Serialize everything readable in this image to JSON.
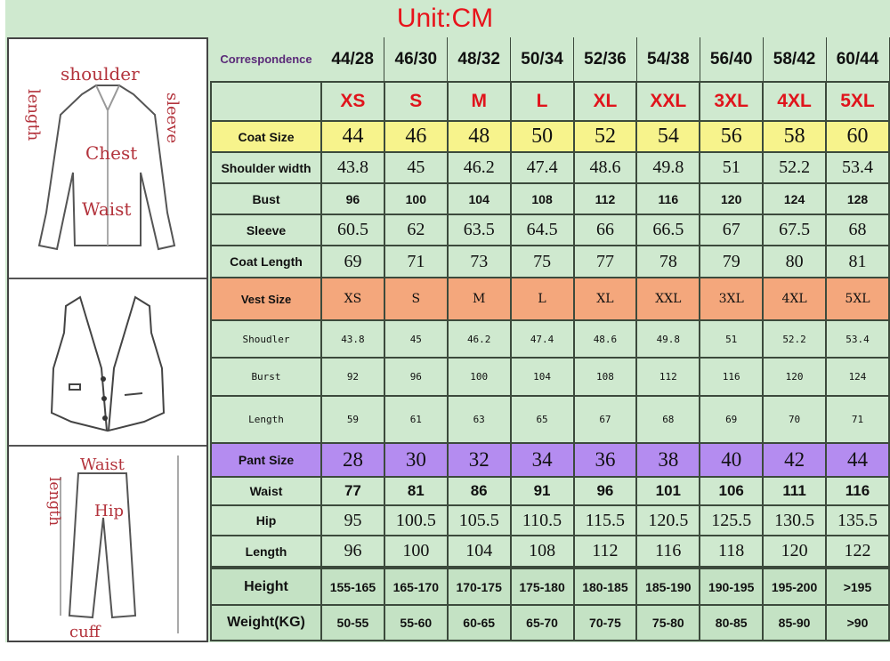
{
  "title": "Unit:CM",
  "illustrations": {
    "coat": {
      "shoulder": "shoulder",
      "length": "length",
      "sleeve": "sleeve",
      "chest": "Chest",
      "waist": "Waist"
    },
    "pants": {
      "waist": "Waist",
      "length": "length",
      "hip": "Hip",
      "cuff": "cuff"
    }
  },
  "colors": {
    "title": "#e8131b",
    "background": "#cfe9cf",
    "coat_size": "#f7f38c",
    "vest_size": "#f4a77c",
    "pant_size": "#b48cf0",
    "size_letters": "#e0141c"
  },
  "table": {
    "rows": [
      {
        "cls": "hdr",
        "h": 50,
        "label": "Correspondence",
        "values": [
          "44/28",
          "46/30",
          "48/32",
          "50/34",
          "52/36",
          "54/38",
          "56/40",
          "58/42",
          "60/44"
        ]
      },
      {
        "cls": "sizes",
        "h": 44,
        "label": "",
        "values": [
          "XS",
          "S",
          "M",
          "L",
          "XL",
          "XXL",
          "3XL",
          "4XL",
          "5XL"
        ]
      },
      {
        "cls": "coat",
        "h": 35,
        "label": "Coat Size",
        "values": [
          "44",
          "46",
          "48",
          "50",
          "52",
          "54",
          "56",
          "58",
          "60"
        ]
      },
      {
        "cls": "serif",
        "h": 35,
        "label": "Shoulder width",
        "values": [
          "43.8",
          "45",
          "46.2",
          "47.4",
          "48.6",
          "49.8",
          "51",
          "52.2",
          "53.4"
        ]
      },
      {
        "cls": "small",
        "h": 35,
        "label": "Bust",
        "values": [
          "96",
          "100",
          "104",
          "108",
          "112",
          "116",
          "120",
          "124",
          "128"
        ]
      },
      {
        "cls": "serif",
        "h": 35,
        "label": "Sleeve",
        "values": [
          "60.5",
          "62",
          "63.5",
          "64.5",
          "66",
          "66.5",
          "67",
          "67.5",
          "68"
        ]
      },
      {
        "cls": "serif",
        "h": 36,
        "label": "Coat Length",
        "values": [
          "69",
          "71",
          "73",
          "75",
          "77",
          "78",
          "79",
          "80",
          "81"
        ]
      },
      {
        "cls": "vest",
        "h": 48,
        "label": "Vest Size",
        "values": [
          "XS",
          "S",
          "M",
          "L",
          "XL",
          "XXL",
          "3XL",
          "4XL",
          "5XL"
        ]
      },
      {
        "cls": "vrow",
        "h": 42,
        "label": "Shoudler",
        "values": [
          "43.8",
          "45",
          "46.2",
          "47.4",
          "48.6",
          "49.8",
          "51",
          "52.2",
          "53.4"
        ]
      },
      {
        "cls": "vrow",
        "h": 43,
        "label": "Burst",
        "values": [
          "92",
          "96",
          "100",
          "104",
          "108",
          "112",
          "116",
          "120",
          "124"
        ]
      },
      {
        "cls": "vrow",
        "h": 53,
        "label": "Length",
        "values": [
          "59",
          "61",
          "63",
          "65",
          "67",
          "68",
          "69",
          "70",
          "71"
        ]
      },
      {
        "cls": "pant",
        "h": 38,
        "label": "Pant Size",
        "values": [
          "28",
          "30",
          "32",
          "34",
          "36",
          "38",
          "40",
          "42",
          "44"
        ]
      },
      {
        "cls": "bold",
        "h": 32,
        "label": "Waist",
        "values": [
          "77",
          "81",
          "86",
          "91",
          "96",
          "101",
          "106",
          "111",
          "116"
        ]
      },
      {
        "cls": "serif",
        "h": 34,
        "label": "Hip",
        "values": [
          "95",
          "100.5",
          "105.5",
          "110.5",
          "115.5",
          "120.5",
          "125.5",
          "130.5",
          "135.5"
        ]
      },
      {
        "cls": "serif",
        "h": 36,
        "label": "Length",
        "values": [
          "96",
          "100",
          "104",
          "108",
          "112",
          "116",
          "118",
          "120",
          "122"
        ]
      },
      {
        "cls": "hw first",
        "h": 42,
        "label": "Height",
        "values": [
          "155-165",
          "165-170",
          "170-175",
          "175-180",
          "180-185",
          "185-190",
          "190-195",
          "195-200",
          ">195"
        ]
      },
      {
        "cls": "hw",
        "h": 40,
        "label": "Weight(KG)",
        "values": [
          "50-55",
          "55-60",
          "60-65",
          "65-70",
          "70-75",
          "75-80",
          "80-85",
          "85-90",
          ">90"
        ]
      }
    ]
  }
}
